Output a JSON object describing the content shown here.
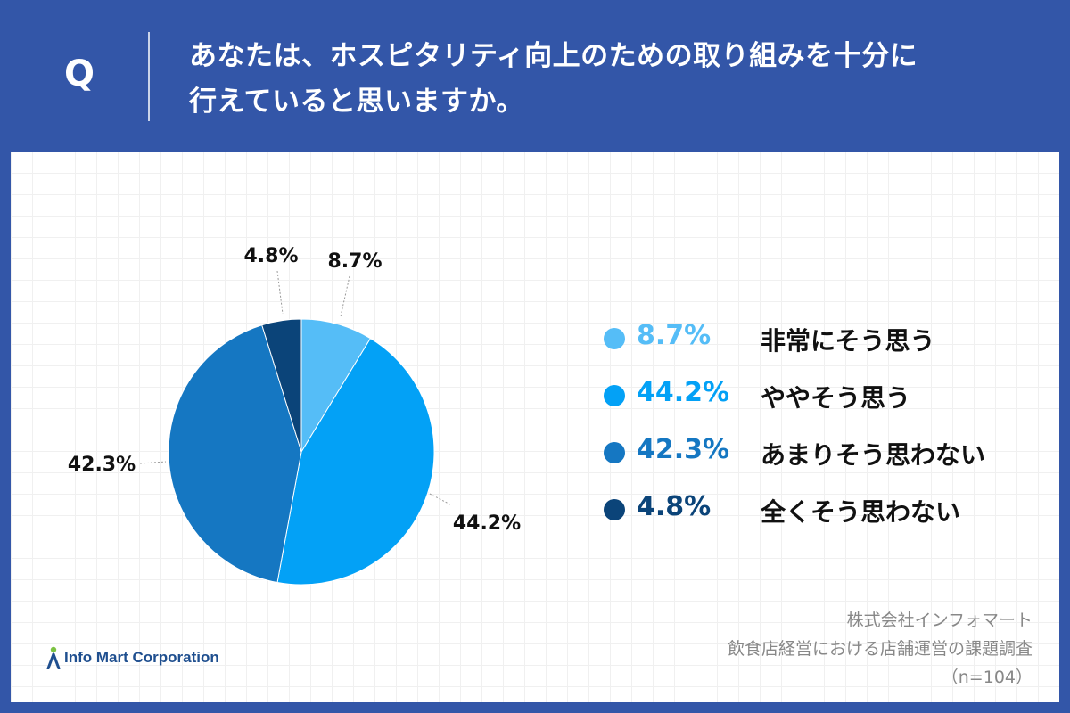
{
  "question": {
    "label": "Q",
    "line1": "あなたは、ホスピタリティ向上のための取り組みを十分に",
    "line2": "行えていると思いますか。"
  },
  "chart_data": {
    "type": "pie",
    "title": "あなたは、ホスピタリティ向上のための取り組みを十分に行えていると思いますか。",
    "slices": [
      {
        "label": "非常にそう思う",
        "value": 8.7,
        "display": "8.7%",
        "color": "#55bdf7"
      },
      {
        "label": "ややそう思う",
        "value": 44.2,
        "display": "44.2%",
        "color": "#03a1f6"
      },
      {
        "label": "あまりそう思わない",
        "value": 42.3,
        "display": "42.3%",
        "color": "#1577c2"
      },
      {
        "label": "全くそう思わない",
        "value": 4.8,
        "display": "4.8%",
        "color": "#0b4479"
      }
    ],
    "start": "12 o'clock",
    "direction": "clockwise"
  },
  "legend": {
    "items": [
      {
        "pct": "8.7%",
        "label": "非常にそう思う"
      },
      {
        "pct": "44.2%",
        "label": "ややそう思う"
      },
      {
        "pct": "42.3%",
        "label": "あまりそう思わない"
      },
      {
        "pct": "4.8%",
        "label": "全くそう思わない"
      }
    ]
  },
  "logo": {
    "text": "Info Mart Corporation",
    "icon": "info-mart-logo-icon",
    "color": "#1f4f8f",
    "accent": "#7cc242"
  },
  "source": {
    "company": "株式会社インフォマート",
    "survey": "飲食店経営における店舗運営の課題調査",
    "sample": "（n=104）"
  }
}
